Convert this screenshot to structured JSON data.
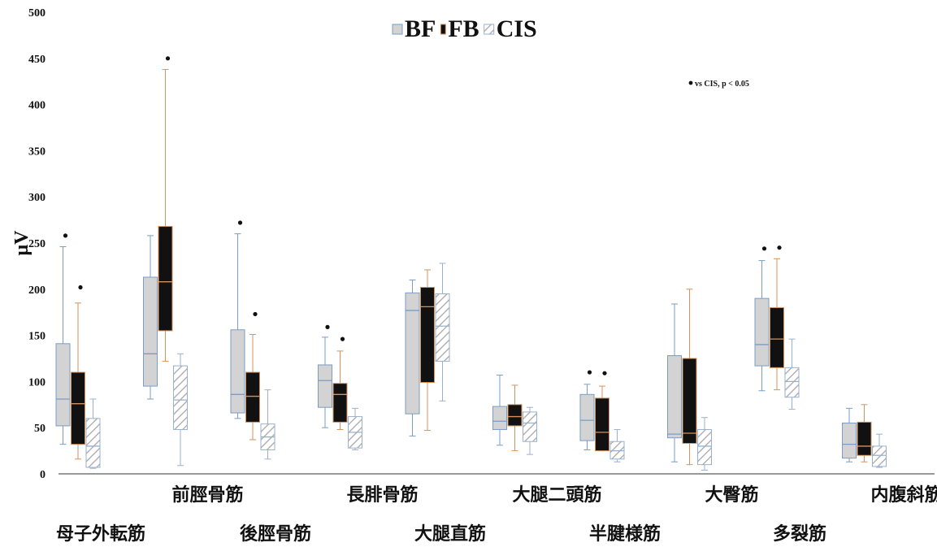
{
  "chart_data": {
    "type": "boxplot",
    "title": "",
    "ylabel": "μV",
    "xlabel": "",
    "ylim": [
      0,
      500
    ],
    "yticks": [
      0,
      50,
      100,
      150,
      200,
      250,
      300,
      350,
      400,
      450,
      500
    ],
    "grid": false,
    "legend_position": "top-center",
    "annotation": "vs CIS, p < 0.05",
    "categories": [
      "母子外転筋",
      "前脛骨筋",
      "後脛骨筋",
      "長腓骨筋",
      "大腿直筋",
      "大腿二頭筋",
      "半腱様筋",
      "大臀筋",
      "多裂筋",
      "内腹斜筋"
    ],
    "series": [
      {
        "name": "BF",
        "fill": "#d3d3d3",
        "edge": "#7a9cc6",
        "whisker": "#7a9cc6",
        "median": "#7a9cc6",
        "hatch": false,
        "boxes": [
          {
            "min": 32,
            "q1": 52,
            "median": 81,
            "q3": 141,
            "max": 246,
            "sig": 258
          },
          {
            "min": 81,
            "q1": 95,
            "median": 130,
            "q3": 213,
            "max": 258,
            "sig": null
          },
          {
            "min": 60,
            "q1": 66,
            "median": 86,
            "q3": 156,
            "max": 260,
            "sig": 272
          },
          {
            "min": 50,
            "q1": 72,
            "median": 101,
            "q3": 118,
            "max": 148,
            "sig": 159
          },
          {
            "min": 41,
            "q1": 65,
            "median": 177,
            "q3": 196,
            "max": 210,
            "sig": null
          },
          {
            "min": 31,
            "q1": 48,
            "median": 57,
            "q3": 73,
            "max": 107,
            "sig": null
          },
          {
            "min": 26,
            "q1": 36,
            "median": 58,
            "q3": 86,
            "max": 97,
            "sig": 110
          },
          {
            "min": 13,
            "q1": 39,
            "median": 43,
            "q3": 128,
            "max": 184,
            "sig": null
          },
          {
            "min": 90,
            "q1": 117,
            "median": 140,
            "q3": 190,
            "max": 231,
            "sig": 244
          },
          {
            "min": 13,
            "q1": 17,
            "median": 32,
            "q3": 55,
            "max": 71,
            "sig": null
          }
        ]
      },
      {
        "name": "FB",
        "fill": "#111111",
        "edge": "#d4935d",
        "whisker": "#d4935d",
        "median": "#d4935d",
        "hatch": false,
        "boxes": [
          {
            "min": 16,
            "q1": 32,
            "median": 76,
            "q3": 110,
            "max": 185,
            "sig": 202
          },
          {
            "min": 122,
            "q1": 155,
            "median": 208,
            "q3": 268,
            "max": 438,
            "sig": 450
          },
          {
            "min": 37,
            "q1": 56,
            "median": 84,
            "q3": 110,
            "max": 151,
            "sig": 173
          },
          {
            "min": 48,
            "q1": 56,
            "median": 86,
            "q3": 98,
            "max": 133,
            "sig": 146
          },
          {
            "min": 47,
            "q1": 99,
            "median": 181,
            "q3": 202,
            "max": 221,
            "sig": null
          },
          {
            "min": 25,
            "q1": 52,
            "median": 62,
            "q3": 75,
            "max": 96,
            "sig": null
          },
          {
            "min": 25,
            "q1": 25,
            "median": 45,
            "q3": 82,
            "max": 95,
            "sig": 109
          },
          {
            "min": 10,
            "q1": 33,
            "median": 44,
            "q3": 125,
            "max": 200,
            "sig": null
          },
          {
            "min": 91,
            "q1": 115,
            "median": 146,
            "q3": 180,
            "max": 233,
            "sig": 245
          },
          {
            "min": 13,
            "q1": 20,
            "median": 30,
            "q3": 56,
            "max": 75,
            "sig": null
          }
        ]
      },
      {
        "name": "CIS",
        "fill": "#ffffff",
        "edge": "#9ab0cc",
        "whisker": "#9ab0cc",
        "median": "#9ab0cc",
        "hatch": true,
        "boxes": [
          {
            "min": 6,
            "q1": 7,
            "median": 30,
            "q3": 60,
            "max": 81,
            "sig": null
          },
          {
            "min": 9,
            "q1": 48,
            "median": 80,
            "q3": 117,
            "max": 130,
            "sig": null
          },
          {
            "min": 16,
            "q1": 26,
            "median": 40,
            "q3": 54,
            "max": 91,
            "sig": null
          },
          {
            "min": 26,
            "q1": 28,
            "median": 45,
            "q3": 62,
            "max": 71,
            "sig": null
          },
          {
            "min": 79,
            "q1": 122,
            "median": 160,
            "q3": 195,
            "max": 228,
            "sig": null
          },
          {
            "min": 21,
            "q1": 35,
            "median": 55,
            "q3": 67,
            "max": 72,
            "sig": null
          },
          {
            "min": 13,
            "q1": 16,
            "median": 25,
            "q3": 35,
            "max": 48,
            "sig": null
          },
          {
            "min": 4,
            "q1": 10,
            "median": 30,
            "q3": 48,
            "max": 61,
            "sig": null
          },
          {
            "min": 70,
            "q1": 83,
            "median": 100,
            "q3": 115,
            "max": 146,
            "sig": null
          },
          {
            "min": 7,
            "q1": 8,
            "median": 20,
            "q3": 30,
            "max": 43,
            "sig": null
          }
        ]
      }
    ]
  }
}
